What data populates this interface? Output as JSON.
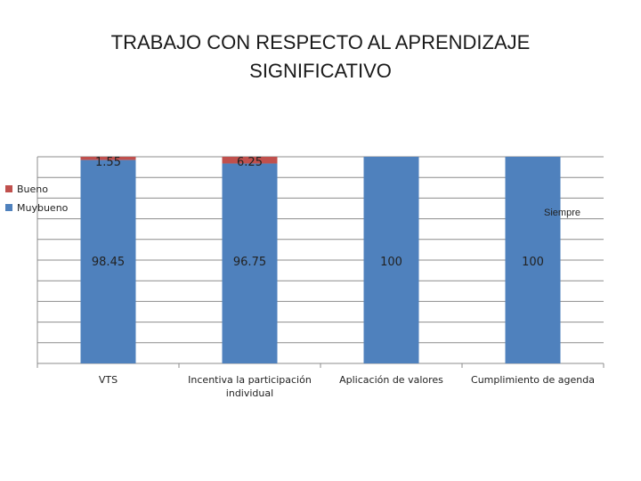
{
  "chart_data": {
    "type": "bar",
    "stacked": true,
    "title_lines": [
      "TRABAJO CON RESPECTO AL APRENDIZAJE",
      "SIGNIFICATIVO"
    ],
    "categories": [
      [
        "VTS"
      ],
      [
        "Incentiva la participación",
        "individual"
      ],
      [
        "Aplicación de valores"
      ],
      [
        "Cumplimiento de agenda"
      ]
    ],
    "series": [
      {
        "name": "Muybueno",
        "color": "#4F81BD",
        "values": [
          98.45,
          96.75,
          100,
          100
        ],
        "labels": [
          "98.45",
          "96.75",
          "100",
          "100"
        ]
      },
      {
        "name": "Bueno",
        "color": "#C0504D",
        "values": [
          1.55,
          6.25,
          0,
          0
        ],
        "labels": [
          "1.55",
          "6.25",
          "",
          ""
        ]
      }
    ],
    "extra_legend_text": "Siempre",
    "ylim": [
      0,
      100
    ],
    "grid": true,
    "legend_position": "left"
  }
}
